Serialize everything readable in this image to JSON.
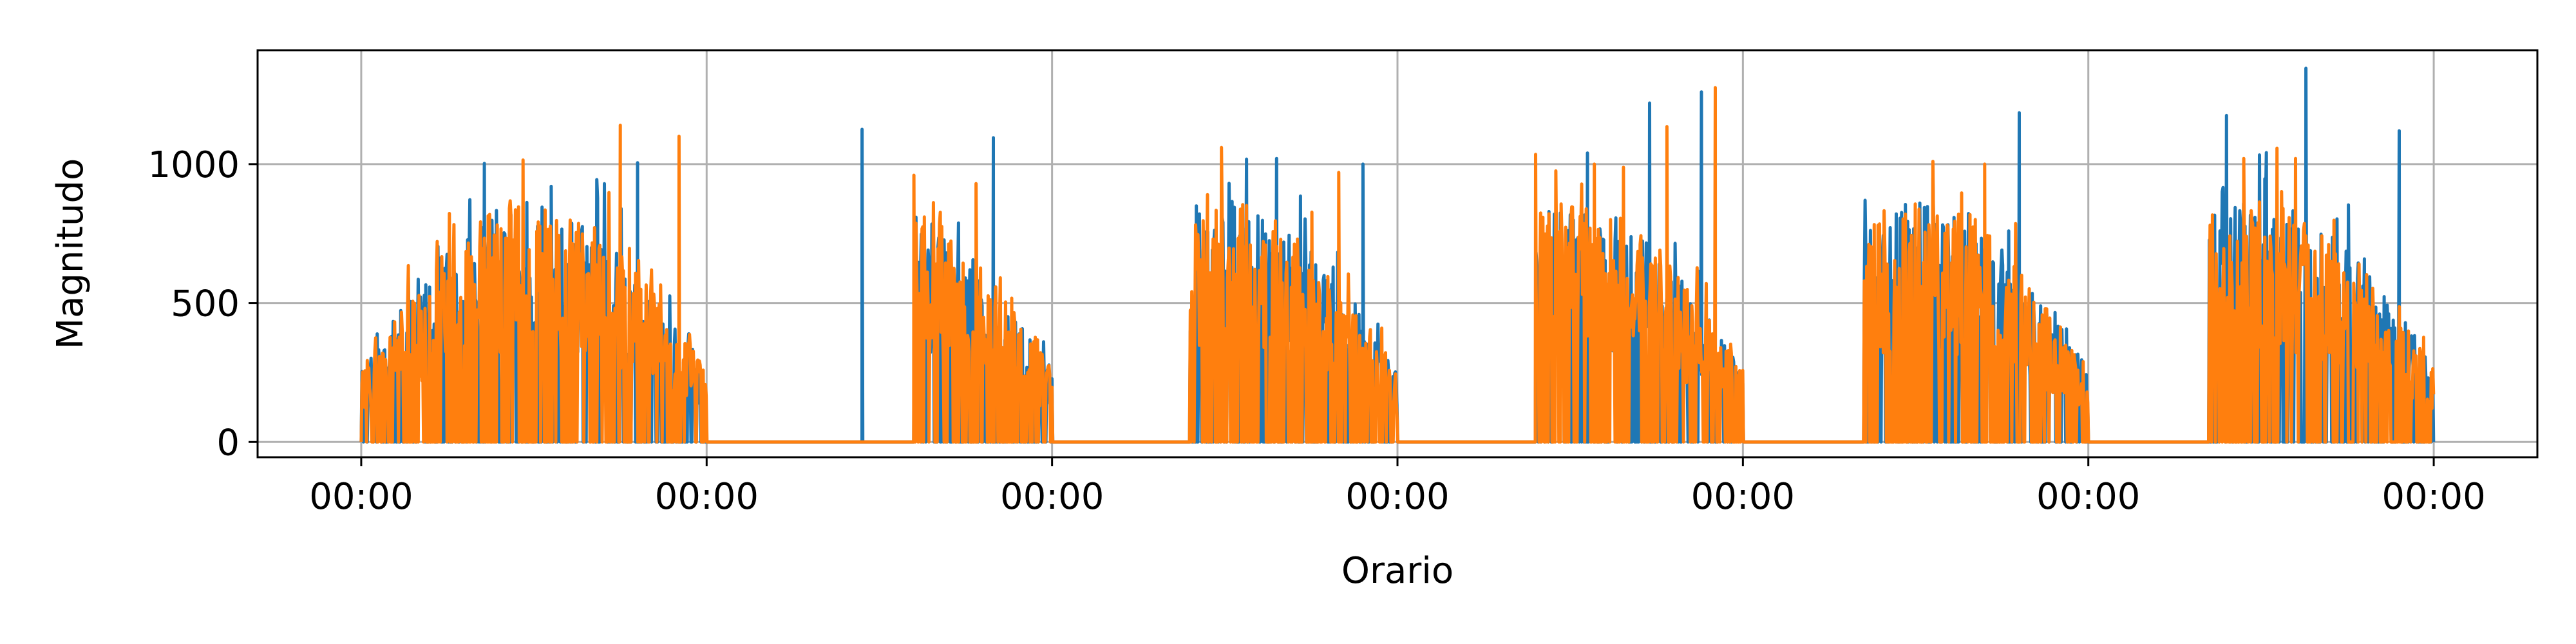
{
  "chart_data": {
    "type": "line",
    "title": "",
    "xlabel": "Orario",
    "ylabel": "Magnitudo",
    "ylim": [
      -55,
      1410
    ],
    "yticks": [
      0,
      500,
      1000
    ],
    "ytick_labels": [
      "0",
      "500",
      "1000"
    ],
    "xlim_days": [
      -0.3,
      6.3
    ],
    "xtick_labels": [
      "00:00",
      "00:00",
      "00:00",
      "00:00",
      "00:00",
      "00:00",
      "00:00"
    ],
    "grid": true,
    "legend": "none",
    "series": [
      {
        "color": "#1f77b4",
        "active_ranges_days": [
          [
            0.0,
            1.0
          ],
          [
            1.6,
            2.0
          ],
          [
            2.4,
            3.0
          ],
          [
            3.4,
            4.0
          ],
          [
            4.35,
            5.0
          ],
          [
            5.35,
            6.0
          ]
        ],
        "peaks": [
          {
            "x": 0.55,
            "y": 920
          },
          {
            "x": 0.8,
            "y": 1005
          },
          {
            "x": 1.45,
            "y": 1125
          },
          {
            "x": 1.83,
            "y": 1095
          },
          {
            "x": 2.65,
            "y": 1020
          },
          {
            "x": 2.9,
            "y": 1000
          },
          {
            "x": 3.55,
            "y": 1040
          },
          {
            "x": 3.73,
            "y": 1220
          },
          {
            "x": 3.88,
            "y": 1260
          },
          {
            "x": 4.55,
            "y": 950
          },
          {
            "x": 4.8,
            "y": 1185
          },
          {
            "x": 5.4,
            "y": 1175
          },
          {
            "x": 5.63,
            "y": 1345
          },
          {
            "x": 5.9,
            "y": 1120
          }
        ],
        "baseline": 0
      },
      {
        "color": "#ff7f0e",
        "active_ranges_days": [
          [
            0.0,
            1.0
          ],
          [
            1.6,
            2.0
          ],
          [
            2.4,
            3.0
          ],
          [
            3.4,
            4.0
          ],
          [
            4.35,
            5.0
          ],
          [
            5.35,
            6.0
          ]
        ],
        "peaks": [
          {
            "x": 0.75,
            "y": 1140
          },
          {
            "x": 0.92,
            "y": 1100
          },
          {
            "x": 1.6,
            "y": 960
          },
          {
            "x": 1.78,
            "y": 930
          },
          {
            "x": 2.45,
            "y": 890
          },
          {
            "x": 2.83,
            "y": 970
          },
          {
            "x": 3.4,
            "y": 1035
          },
          {
            "x": 3.57,
            "y": 1000
          },
          {
            "x": 3.78,
            "y": 1135
          },
          {
            "x": 3.92,
            "y": 1275
          },
          {
            "x": 4.55,
            "y": 1010
          },
          {
            "x": 4.7,
            "y": 1000
          },
          {
            "x": 5.45,
            "y": 1020
          },
          {
            "x": 5.6,
            "y": 1020
          }
        ],
        "baseline": 0
      }
    ]
  }
}
